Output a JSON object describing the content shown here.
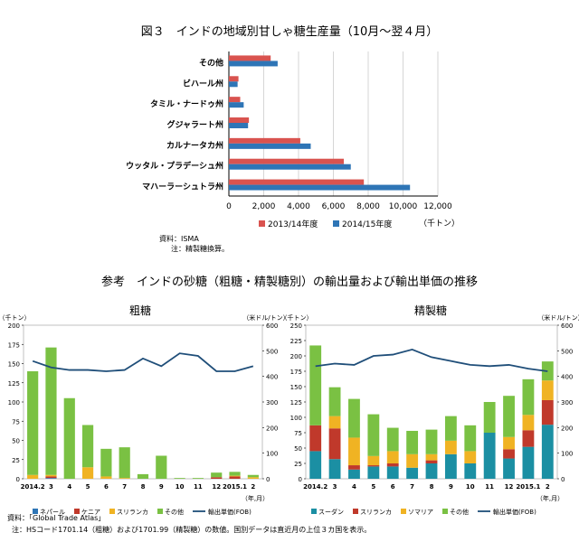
{
  "fig3_title": "図３　インドの地域別甘しゃ糖生産量（10月〜翌４月）",
  "fig3_source": "資料：ISMA",
  "fig3_note": "注：精製糖換算。",
  "sankou_title": "参考　インドの砂糖（粗糖・精製糖別）の輸出量および輸出単価の推移",
  "bottom_source": "資料：「Global Trade Atlas」",
  "bottom_note": "注：HSコード1701.14（粗糖）および1701.99（精製糖）の数値。国別データは直近月の上位３カ国を表示。",
  "colors": {
    "s2013": "#d9534f",
    "s2014": "#2e75b6",
    "line": "#1f4e79",
    "nepal": "#2e75b6",
    "kenya": "#c0392b",
    "srilanka": "#f0b323",
    "other": "#7ac143",
    "sudan": "#1b8fa3"
  },
  "chart_data": [
    {
      "type": "bar",
      "orientation": "horizontal",
      "title": "図３　インドの地域別甘しゃ糖生産量（10月〜翌４月）",
      "categories": [
        "その他",
        "ビハール州",
        "タミル・ナードゥ州",
        "グジャラート州",
        "カルナータカ州",
        "ウッタル・プラデーシュ州",
        "マハーラーシュトラ州"
      ],
      "series": [
        {
          "name": "2013/14年度",
          "values": [
            2400,
            550,
            650,
            1150,
            4100,
            6600,
            7750
          ]
        },
        {
          "name": "2014/15年度",
          "values": [
            2800,
            500,
            850,
            1100,
            4700,
            7000,
            10400
          ]
        }
      ],
      "xlim": [
        0,
        12000
      ],
      "xticks": [
        "0",
        "2,000",
        "4,000",
        "6,000",
        "8,000",
        "10,000",
        "12,000"
      ],
      "xunit": "（千トン）",
      "legend_position": "bottom",
      "grid": true
    },
    {
      "type": "bar",
      "stacked": true,
      "title": "粗糖",
      "categories": [
        "2014.2",
        "3",
        "4",
        "5",
        "6",
        "7",
        "8",
        "9",
        "10",
        "11",
        "12",
        "2015.1",
        "2"
      ],
      "x_unit": "（年,月）",
      "y_left_unit": "（千トン）",
      "y_right_unit": "（米ドル/トン）",
      "ylim": [
        0,
        200
      ],
      "y_right_lim": [
        0,
        600
      ],
      "yticks": [
        "0",
        "25",
        "50",
        "75",
        "100",
        "125",
        "150",
        "175",
        "200"
      ],
      "yticks_right": [
        "0",
        "100",
        "200",
        "300",
        "400",
        "500",
        "600"
      ],
      "series": [
        {
          "name": "ネパール",
          "values": [
            0,
            1,
            0,
            0,
            0,
            0,
            0,
            0,
            0,
            0,
            0,
            0,
            0
          ]
        },
        {
          "name": "ケニア",
          "values": [
            0,
            2,
            0,
            0,
            0,
            0,
            0,
            0,
            0,
            0,
            2,
            3,
            0
          ]
        },
        {
          "name": "スリランカ",
          "values": [
            5,
            2,
            0,
            15,
            3,
            1,
            0,
            0,
            0,
            0,
            0,
            1,
            2
          ]
        },
        {
          "name": "その他",
          "values": [
            135,
            166,
            105,
            55,
            36,
            40,
            6,
            30,
            1,
            1,
            6,
            5,
            3
          ]
        }
      ],
      "line": {
        "name": "輸出単価(FOB)",
        "axis": "right",
        "values": [
          460,
          435,
          425,
          425,
          420,
          425,
          470,
          440,
          490,
          480,
          420,
          420,
          440
        ]
      },
      "legend_position": "bottom"
    },
    {
      "type": "bar",
      "stacked": true,
      "title": "精製糖",
      "categories": [
        "2014.2",
        "3",
        "4",
        "5",
        "6",
        "7",
        "8",
        "9",
        "10",
        "11",
        "12",
        "2015.1",
        "2"
      ],
      "x_unit": "（年,月）",
      "y_left_unit": "（千トン）",
      "y_right_unit": "（米ドル/トン）",
      "ylim": [
        0,
        250
      ],
      "y_right_lim": [
        0,
        600
      ],
      "yticks": [
        "0",
        "25",
        "50",
        "75",
        "100",
        "125",
        "150",
        "175",
        "200",
        "225",
        "250"
      ],
      "yticks_right": [
        "0",
        "100",
        "200",
        "300",
        "400",
        "500",
        "600"
      ],
      "series": [
        {
          "name": "スーダン",
          "values": [
            45,
            32,
            15,
            20,
            20,
            18,
            25,
            40,
            25,
            75,
            33,
            52,
            88
          ]
        },
        {
          "name": "スリランカ",
          "values": [
            42,
            50,
            7,
            2,
            5,
            0,
            5,
            0,
            0,
            0,
            15,
            27,
            40
          ]
        },
        {
          "name": "ソマリア",
          "values": [
            0,
            20,
            45,
            15,
            20,
            22,
            10,
            22,
            20,
            0,
            20,
            25,
            32
          ]
        },
        {
          "name": "その他",
          "values": [
            130,
            47,
            63,
            68,
            38,
            38,
            40,
            40,
            42,
            50,
            67,
            58,
            31
          ]
        }
      ],
      "line": {
        "name": "輸出単価(FOB)",
        "axis": "right",
        "values": [
          440,
          450,
          445,
          480,
          485,
          505,
          475,
          460,
          445,
          440,
          445,
          430,
          420
        ]
      },
      "legend_position": "bottom"
    }
  ]
}
